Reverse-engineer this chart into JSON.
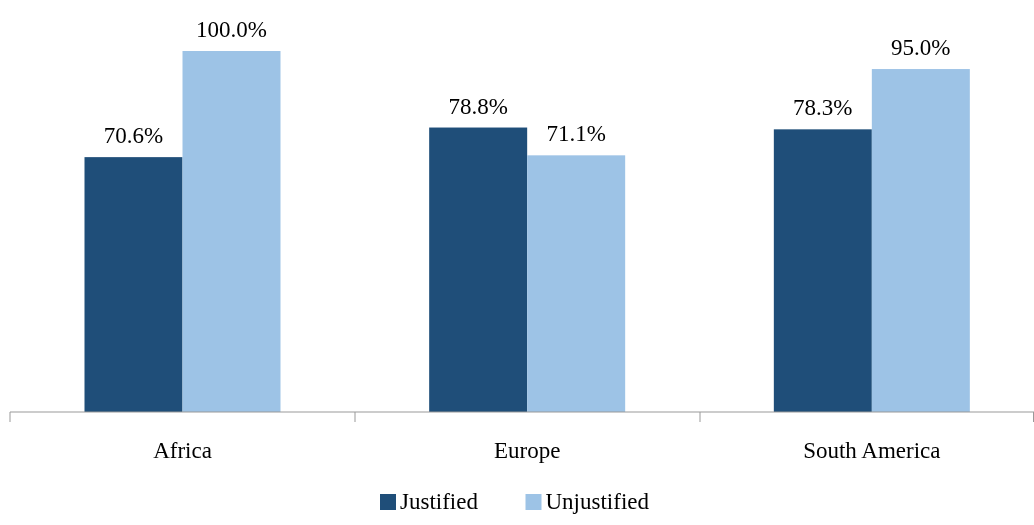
{
  "chart_data": {
    "type": "bar",
    "categories": [
      "Africa",
      "Europe",
      "South America"
    ],
    "series": [
      {
        "name": "Justified",
        "color": "#1f4e79",
        "values": [
          70.6,
          78.8,
          78.3
        ],
        "value_labels": [
          "70.6%",
          "78.8%",
          "78.3%"
        ]
      },
      {
        "name": "Unjustified",
        "color": "#9dc3e6",
        "values": [
          100.0,
          71.1,
          95.0
        ],
        "value_labels": [
          "100.0%",
          "71.1%",
          "95.0%"
        ]
      }
    ],
    "legend": "bottom"
  }
}
